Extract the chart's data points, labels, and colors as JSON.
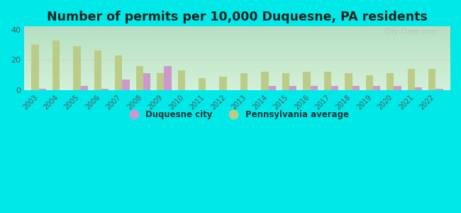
{
  "title": "Number of permits per 10,000 Duquesne, PA residents",
  "years": [
    2003,
    2004,
    2005,
    2006,
    2007,
    2008,
    2009,
    2010,
    2011,
    2012,
    2013,
    2014,
    2015,
    2016,
    2017,
    2018,
    2019,
    2020,
    2021,
    2022
  ],
  "duquesne": [
    1,
    0,
    3,
    1,
    7,
    11,
    16,
    0,
    0,
    0,
    0,
    3,
    3,
    3,
    3,
    3,
    3,
    3,
    2,
    1
  ],
  "pa_avg": [
    30,
    33,
    29,
    26,
    23,
    16,
    11,
    13,
    8,
    9,
    11,
    12,
    11,
    12,
    12,
    11,
    10,
    11,
    14,
    14
  ],
  "duquesne_color": "#cc99cc",
  "pa_avg_color": "#bbcc88",
  "background_plot_top": "#d8f0d8",
  "background_plot_bottom": "#e8faf0",
  "background_outer": "#00e8e8",
  "title_fontsize": 12.5,
  "ylim": [
    0,
    42
  ],
  "yticks": [
    0,
    20,
    40
  ],
  "bar_width": 0.35,
  "legend_duquesne": "Duquesne city",
  "legend_pa": "Pennsylvania average",
  "watermark": "City-Data.com",
  "figsize": [
    6.5,
    3.0
  ],
  "dpi": 100
}
